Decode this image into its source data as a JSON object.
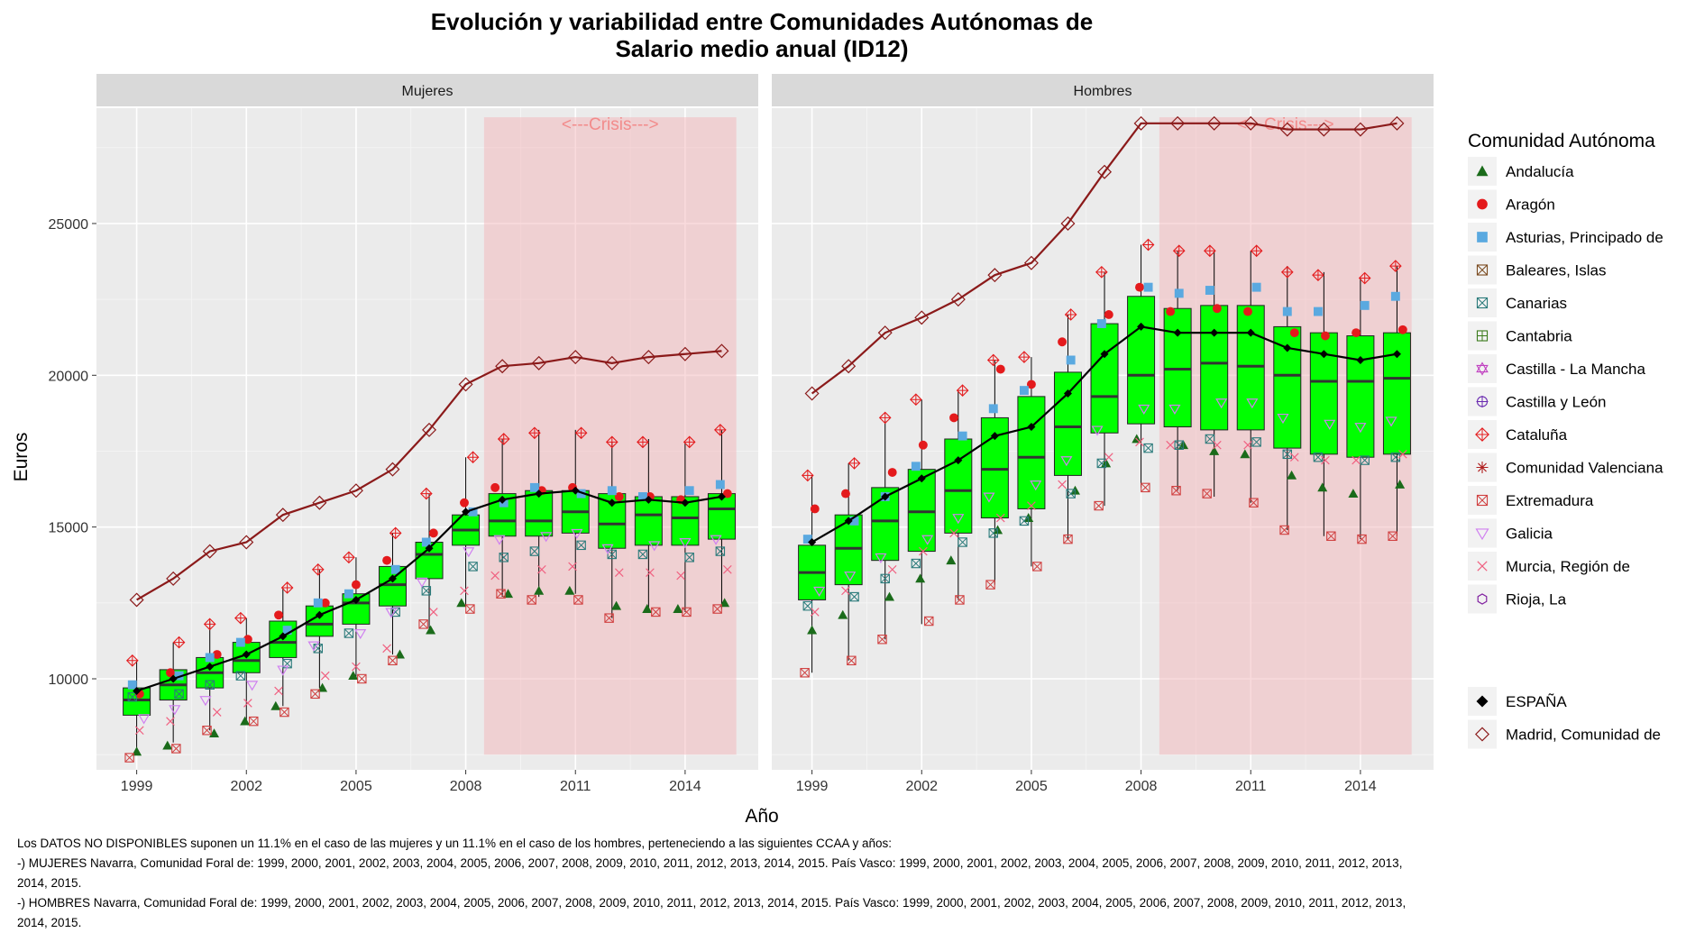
{
  "chart_data": {
    "type": "box",
    "title_line1": "Evolución y variabilidad entre Comunidades Autónomas de",
    "title_line2": "Salario medio anual (ID12)",
    "xlabel": "Año",
    "ylabel": "Euros",
    "x_ticks": [
      1999,
      2002,
      2005,
      2008,
      2011,
      2014
    ],
    "y_ticks": [
      10000,
      15000,
      20000,
      25000
    ],
    "ylim": [
      7000,
      28800
    ],
    "crisis_label": "<---Crisis--->",
    "crisis_range": [
      2008.5,
      2015.4
    ],
    "legend_title": "Comunidad Autónoma",
    "legend_items": [
      {
        "name": "Andalucía",
        "shape": "triangle",
        "color": "#1a6b1a"
      },
      {
        "name": "Aragón",
        "shape": "circle",
        "color": "#e41a1c"
      },
      {
        "name": "Asturias, Principado de",
        "shape": "square",
        "color": "#5aa9e0"
      },
      {
        "name": "Baleares, Islas",
        "shape": "square-x",
        "color": "#7a4a1f"
      },
      {
        "name": "Canarias",
        "shape": "x-square",
        "color": "#2a7a7a"
      },
      {
        "name": "Cantabria",
        "shape": "square-plus",
        "color": "#3a7a1a"
      },
      {
        "name": "Castilla - La Mancha",
        "shape": "star6",
        "color": "#c040c0"
      },
      {
        "name": "Castilla y León",
        "shape": "circle-plus",
        "color": "#6a2ab0"
      },
      {
        "name": "Cataluña",
        "shape": "diamond-plus",
        "color": "#e41a1c"
      },
      {
        "name": "Comunidad Valenciana",
        "shape": "asterisk",
        "color": "#b02020"
      },
      {
        "name": "Extremadura",
        "shape": "square-x",
        "color": "#d04040"
      },
      {
        "name": "Galicia",
        "shape": "tri-down",
        "color": "#d080f0"
      },
      {
        "name": "Murcia, Región de",
        "shape": "cross",
        "color": "#f06080"
      },
      {
        "name": "Rioja, La",
        "shape": "hexagon",
        "color": "#8020a0"
      }
    ],
    "legend_extra": [
      {
        "name": "ESPAÑA",
        "shape": "diamond-filled",
        "color": "#000000"
      },
      {
        "name": "Madrid, Comunidad de",
        "shape": "diamond",
        "color": "#8b1a1a"
      }
    ],
    "years": [
      1999,
      2000,
      2001,
      2002,
      2003,
      2004,
      2005,
      2006,
      2007,
      2008,
      2009,
      2010,
      2011,
      2012,
      2013,
      2014,
      2015
    ],
    "panels": [
      {
        "label": "Mujeres",
        "espana": [
          9600,
          10000,
          10400,
          10800,
          11400,
          12100,
          12600,
          13300,
          14300,
          15500,
          15900,
          16100,
          16200,
          15800,
          15900,
          15800,
          16000
        ],
        "madrid": [
          12600,
          13300,
          14200,
          14500,
          15400,
          15800,
          16200,
          16900,
          18200,
          19700,
          20300,
          20400,
          20600,
          20400,
          20600,
          20700,
          20800
        ],
        "box_q1": [
          8800,
          9300,
          9700,
          10200,
          10700,
          11400,
          11800,
          12400,
          13300,
          14400,
          14700,
          14700,
          14800,
          14300,
          14400,
          14400,
          14600
        ],
        "box_median": [
          9300,
          9800,
          10200,
          10600,
          11200,
          11800,
          12500,
          13100,
          14100,
          14900,
          15200,
          15200,
          15500,
          15100,
          15400,
          15300,
          15600
        ],
        "box_q3": [
          9700,
          10300,
          10700,
          11200,
          11900,
          12400,
          12800,
          13700,
          14500,
          15400,
          16100,
          16200,
          16200,
          16100,
          16000,
          16000,
          16100
        ],
        "whisker_lo": [
          7600,
          7900,
          8300,
          8600,
          9100,
          9700,
          10000,
          10800,
          11600,
          12400,
          12700,
          12700,
          12800,
          12000,
          12200,
          12200,
          12300
        ],
        "whisker_hi": [
          10600,
          11200,
          11900,
          12000,
          13000,
          13600,
          14000,
          14800,
          16100,
          17300,
          17900,
          18200,
          18200,
          17800,
          17900,
          17800,
          18200
        ],
        "points": {
          "andalucia": [
            7600,
            7800,
            8200,
            8600,
            9100,
            9700,
            10100,
            10800,
            11600,
            12500,
            12800,
            12900,
            12900,
            12400,
            12300,
            12300,
            12500
          ],
          "aragon": [
            9500,
            10200,
            10800,
            11300,
            12100,
            12500,
            13100,
            13900,
            14800,
            15800,
            16300,
            16200,
            16300,
            16000,
            16000,
            15900,
            16100
          ],
          "asturias": [
            9800,
            10100,
            10700,
            11200,
            11600,
            12500,
            12800,
            13600,
            14500,
            15500,
            15800,
            16300,
            16100,
            16200,
            16000,
            16200,
            16400
          ],
          "canarias": [
            9400,
            9500,
            9800,
            10100,
            10500,
            11000,
            11500,
            12200,
            12900,
            13700,
            14000,
            14200,
            14400,
            14100,
            14100,
            14000,
            14200
          ],
          "extremadura": [
            7400,
            7700,
            8300,
            8600,
            8900,
            9500,
            10000,
            10600,
            11800,
            12300,
            12800,
            12600,
            12600,
            12000,
            12200,
            12200,
            12300
          ],
          "murcia": [
            8300,
            8600,
            8900,
            9200,
            9600,
            10100,
            10400,
            11000,
            12200,
            12900,
            13400,
            13600,
            13700,
            13500,
            13500,
            13400,
            13600
          ],
          "galicia": [
            8700,
            9000,
            9300,
            9800,
            10300,
            11100,
            11500,
            12200,
            13200,
            14200,
            14600,
            14700,
            14800,
            14300,
            14400,
            14500,
            14600
          ],
          "cataluna": [
            10600,
            11200,
            11800,
            12000,
            13000,
            13600,
            14000,
            14800,
            16100,
            17300,
            17900,
            18100,
            18100,
            17800,
            17800,
            17800,
            18200
          ]
        }
      },
      {
        "label": "Hombres",
        "espana": [
          14500,
          15200,
          16000,
          16600,
          17200,
          18000,
          18300,
          19400,
          20700,
          21600,
          21400,
          21400,
          21400,
          20900,
          20700,
          20500,
          20700
        ],
        "madrid": [
          19400,
          20300,
          21400,
          21900,
          22500,
          23300,
          23700,
          25000,
          26700,
          28300,
          28300,
          28300,
          28300,
          28100,
          28100,
          28100,
          28300
        ],
        "box_q1": [
          12600,
          13100,
          13900,
          14200,
          14800,
          15300,
          15600,
          16700,
          18100,
          18400,
          18300,
          18200,
          18200,
          17600,
          17400,
          17300,
          17400
        ],
        "box_median": [
          13500,
          14300,
          15200,
          15500,
          16200,
          16900,
          17300,
          18300,
          19300,
          20000,
          20200,
          20400,
          20300,
          20000,
          19800,
          19800,
          19900
        ],
        "box_q3": [
          14400,
          15400,
          16300,
          16900,
          17900,
          18600,
          19300,
          20100,
          21700,
          22600,
          22200,
          22300,
          22300,
          21600,
          21400,
          21300,
          21400
        ],
        "whisker_lo": [
          10200,
          10600,
          11300,
          11800,
          12600,
          13100,
          13700,
          14600,
          15700,
          16300,
          16200,
          16000,
          15800,
          14900,
          14700,
          14600,
          14700
        ],
        "whisker_hi": [
          16700,
          17100,
          18500,
          19200,
          19500,
          20500,
          20600,
          22000,
          23400,
          24300,
          24100,
          24100,
          24100,
          23600,
          23400,
          23200,
          23600
        ],
        "points": {
          "andalucia": [
            11600,
            12100,
            12700,
            13300,
            13900,
            14900,
            15300,
            16200,
            17100,
            17900,
            17700,
            17500,
            17400,
            16700,
            16300,
            16100,
            16400
          ],
          "aragon": [
            15600,
            16100,
            16800,
            17700,
            18600,
            20200,
            19700,
            21100,
            22000,
            22900,
            22100,
            22200,
            22100,
            21400,
            21300,
            21400,
            21500
          ],
          "asturias": [
            14600,
            15200,
            16000,
            17000,
            18000,
            18900,
            19500,
            20500,
            21700,
            22900,
            22700,
            22800,
            22900,
            22100,
            22100,
            22300,
            22600
          ],
          "canarias": [
            12400,
            12700,
            13300,
            13800,
            14500,
            14800,
            15200,
            16100,
            17100,
            17600,
            17700,
            17900,
            17800,
            17400,
            17300,
            17200,
            17300
          ],
          "extremadura": [
            10200,
            10600,
            11300,
            11900,
            12600,
            13100,
            13700,
            14600,
            15700,
            16300,
            16200,
            16100,
            15800,
            14900,
            14700,
            14600,
            14700
          ],
          "murcia": [
            12200,
            12900,
            13600,
            14200,
            14800,
            15300,
            15700,
            16400,
            17300,
            17800,
            17700,
            17700,
            17700,
            17300,
            17200,
            17200,
            17400
          ],
          "galicia": [
            12900,
            13400,
            14000,
            14600,
            15300,
            16000,
            16400,
            17200,
            18200,
            18900,
            18900,
            19100,
            19100,
            18600,
            18400,
            18300,
            18500
          ],
          "cataluna": [
            16700,
            17100,
            18600,
            19200,
            19500,
            20500,
            20600,
            22000,
            23400,
            24300,
            24100,
            24100,
            24100,
            23400,
            23300,
            23200,
            23600
          ]
        }
      }
    ]
  },
  "footnote": {
    "line1": "Los DATOS NO DISPONIBLES suponen un 11.1% en el caso de las mujeres y un 11.1% en el caso de los hombres, perteneciendo a las siguientes CCAA y años:",
    "line2": "-) MUJERES Navarra, Comunidad Foral de: 1999, 2000, 2001, 2002, 2003, 2004, 2005, 2006, 2007, 2008, 2009, 2010, 2011, 2012, 2013, 2014, 2015. País Vasco: 1999, 2000, 2001, 2002, 2003, 2004, 2005, 2006, 2007, 2008, 2009, 2010, 2011, 2012, 2013, 2014, 2015.",
    "line3": "-) HOMBRES Navarra, Comunidad Foral de: 1999, 2000, 2001, 2002, 2003, 2004, 2005, 2006, 2007, 2008, 2009, 2010, 2011, 2012, 2013, 2014, 2015. País Vasco: 1999, 2000, 2001, 2002, 2003, 2004, 2005, 2006, 2007, 2008, 2009, 2010, 2011, 2012, 2013, 2014, 2015."
  }
}
